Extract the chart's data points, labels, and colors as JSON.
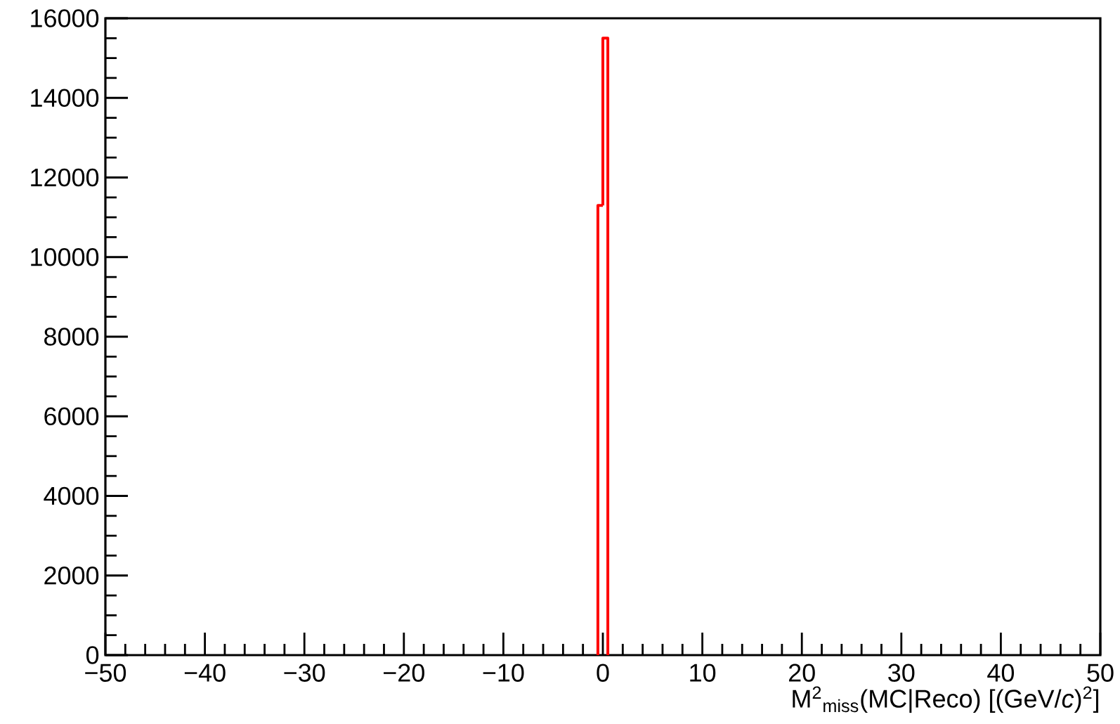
{
  "chart_data": {
    "type": "histogram",
    "xlabel": "M$^{2}$$_{miss}$(MC|Reco) [(GeV/*c*)$^{2}$]",
    "bins": [
      -0.5,
      0,
      0.5
    ],
    "values": [
      11300,
      15500
    ],
    "color": "#ff0000",
    "xlim": [
      -50,
      50
    ],
    "ylim": [
      0,
      16000
    ],
    "xticks": [
      {
        "value": -50,
        "label": "−50"
      },
      {
        "value": -40,
        "label": "−40"
      },
      {
        "value": -30,
        "label": "−30"
      },
      {
        "value": -20,
        "label": "−20"
      },
      {
        "value": -10,
        "label": "−10"
      },
      0,
      10,
      20,
      30,
      40,
      50
    ],
    "yticks": [
      0,
      2000,
      4000,
      6000,
      8000,
      10000,
      12000,
      14000,
      16000
    ]
  }
}
